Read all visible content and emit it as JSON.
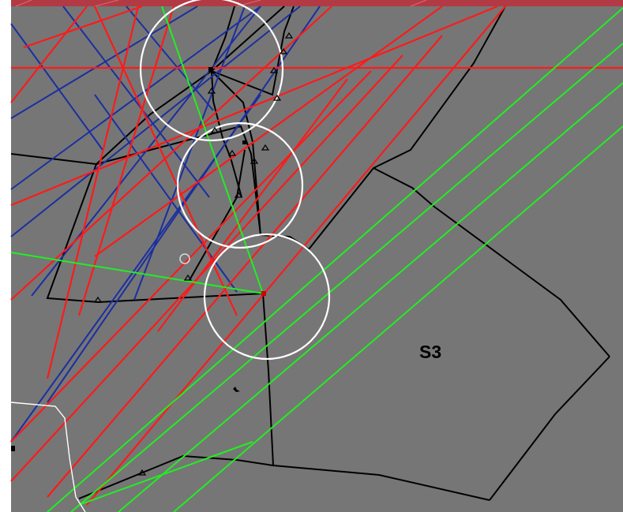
{
  "map": {
    "sector_label": "S3",
    "colors": {
      "background": "#767676",
      "boundary": "#000000",
      "restricted_route": "#ff1a1a",
      "upper_route": "#1b2fa0",
      "proposed_route": "#22ee22",
      "holding_circle": "#ffffff",
      "header_band": "#c0323c"
    },
    "route_legend_colors": {
      "red_routes": "#ff1a1a",
      "blue_routes": "#1b2fa0",
      "green_routes": "#22ee22"
    },
    "icons": {
      "waypoint": "triangle-waypoint-icon",
      "fix": "square-fix-icon",
      "cursor_marker": "circle-marker-icon",
      "aircraft": "aircraft-icon"
    }
  }
}
